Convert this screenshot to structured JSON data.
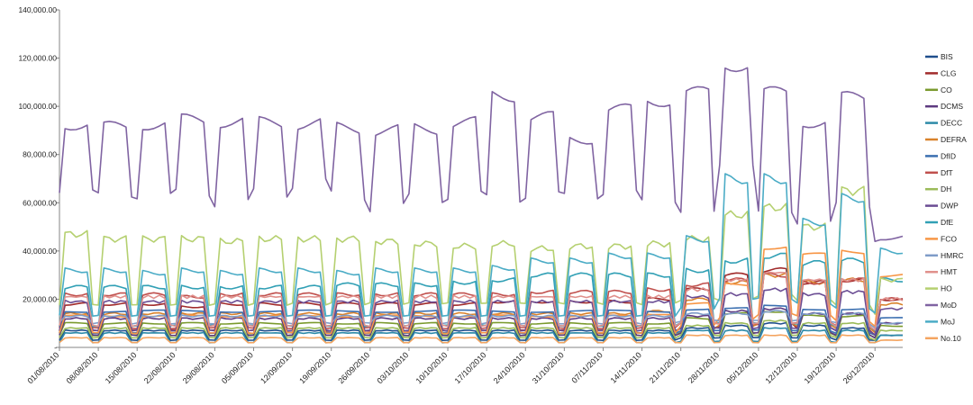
{
  "chart_data": {
    "type": "line",
    "title": "",
    "xlabel": "",
    "ylabel": "",
    "ylim": [
      0,
      140000
    ],
    "xlim": [
      "2010-08-01",
      "2010-12-31"
    ],
    "grid": false,
    "legend_position": "right",
    "y_tick_labels": [
      "-",
      "20,000.00",
      "40,000.00",
      "60,000.00",
      "80,000.00",
      "100,000.00",
      "120,000.00",
      "140,000.00"
    ],
    "x_tick_labels": [
      "01/08/2010",
      "08/08/2010",
      "15/08/2010",
      "22/08/2010",
      "29/08/2010",
      "05/09/2010",
      "12/09/2010",
      "19/09/2010",
      "26/09/2010",
      "03/10/2010",
      "10/10/2010",
      "17/10/2010",
      "24/10/2010",
      "31/10/2010",
      "07/11/2010",
      "14/11/2010",
      "21/11/2010",
      "28/11/2010",
      "05/12/2010",
      "12/12/2010",
      "19/12/2010",
      "26/12/2010"
    ],
    "x_weeks": [
      "2010-08-01",
      "2010-08-08",
      "2010-08-15",
      "2010-08-22",
      "2010-08-29",
      "2010-09-05",
      "2010-09-12",
      "2010-09-19",
      "2010-09-26",
      "2010-10-03",
      "2010-10-10",
      "2010-10-17",
      "2010-10-24",
      "2010-10-31",
      "2010-11-07",
      "2010-11-14",
      "2010-11-21",
      "2010-11-28",
      "2010-12-05",
      "2010-12-12",
      "2010-12-19",
      "2010-12-26"
    ],
    "series": [
      {
        "name": "BIS",
        "color": "#1f4e8c",
        "weekday": [
          7000,
          7000,
          7000,
          7000,
          7000,
          7000,
          7000,
          7000,
          7000,
          7000,
          7000,
          7000,
          7000,
          7000,
          7000,
          7000,
          8000,
          9000,
          10000,
          9000,
          8000,
          5000
        ],
        "weekend": [
          3000,
          3000,
          3000,
          3000,
          3000,
          3000,
          3000,
          3000,
          3000,
          3000,
          3000,
          3000,
          3000,
          3000,
          3000,
          3000,
          4000,
          4000,
          4000,
          4000,
          3000,
          3000
        ]
      },
      {
        "name": "CLG",
        "color": "#a12b2b",
        "weekday": [
          18000,
          18000,
          18000,
          17000,
          18000,
          18000,
          18000,
          18000,
          18000,
          18000,
          18000,
          19000,
          19000,
          19000,
          19000,
          20000,
          24000,
          30000,
          32000,
          27000,
          28000,
          20000
        ],
        "weekend": [
          7000,
          7000,
          7000,
          7000,
          7000,
          7000,
          7000,
          7000,
          7000,
          7000,
          7000,
          7000,
          7000,
          7000,
          7000,
          7000,
          8000,
          9000,
          10000,
          8000,
          7000,
          5000
        ]
      },
      {
        "name": "CO",
        "color": "#7a9a2e",
        "weekday": [
          10000,
          10000,
          10000,
          10000,
          10000,
          10000,
          10000,
          10000,
          10000,
          10000,
          10000,
          10000,
          10000,
          10000,
          10000,
          10000,
          12000,
          14000,
          15000,
          13000,
          13000,
          9000
        ],
        "weekend": [
          5000,
          5000,
          5000,
          5000,
          5000,
          5000,
          5000,
          5000,
          5000,
          5000,
          5000,
          5000,
          5000,
          5000,
          5000,
          5000,
          6000,
          6000,
          6000,
          6000,
          5000,
          4000
        ]
      },
      {
        "name": "DCMS",
        "color": "#5d3a80",
        "weekday": [
          12000,
          12000,
          12000,
          12000,
          12000,
          12000,
          12000,
          12000,
          12000,
          12000,
          12000,
          12000,
          12000,
          12000,
          12000,
          12000,
          13000,
          15000,
          16000,
          14000,
          14000,
          10000
        ],
        "weekend": [
          5000,
          5000,
          5000,
          5000,
          5000,
          5000,
          5000,
          5000,
          5000,
          5000,
          5000,
          5000,
          5000,
          5000,
          5000,
          5000,
          6000,
          6000,
          6000,
          6000,
          5000,
          4000
        ]
      },
      {
        "name": "DECC",
        "color": "#2d8aa8",
        "weekday": [
          6000,
          6000,
          6000,
          6000,
          6000,
          6000,
          6000,
          6000,
          6000,
          6000,
          6000,
          6000,
          6000,
          6000,
          6000,
          6000,
          7000,
          7000,
          8000,
          7000,
          7000,
          5000
        ],
        "weekend": [
          2000,
          2000,
          2000,
          2000,
          2000,
          2000,
          2000,
          2000,
          2000,
          2000,
          2000,
          2000,
          2000,
          2000,
          2000,
          2000,
          2500,
          2500,
          2500,
          2500,
          2000,
          2000
        ]
      },
      {
        "name": "DEFRA",
        "color": "#d9822b",
        "weekday": [
          14000,
          14000,
          14000,
          14000,
          14000,
          14000,
          14000,
          14000,
          14000,
          14000,
          14000,
          14000,
          14000,
          14000,
          14000,
          15000,
          20000,
          27000,
          30000,
          27000,
          28000,
          18000
        ],
        "weekend": [
          6000,
          6000,
          6000,
          6000,
          6000,
          6000,
          6000,
          6000,
          6000,
          6000,
          6000,
          6000,
          6000,
          6000,
          6000,
          6000,
          8000,
          9000,
          10000,
          9000,
          8000,
          6000
        ]
      },
      {
        "name": "DfID",
        "color": "#3a6fb0",
        "weekday": [
          15000,
          15000,
          15000,
          15000,
          15000,
          15000,
          15000,
          15000,
          15000,
          15000,
          15000,
          15000,
          15000,
          15000,
          15000,
          15000,
          16000,
          16000,
          17000,
          16000,
          16000,
          12000
        ],
        "weekend": [
          6000,
          6000,
          6000,
          6000,
          6000,
          6000,
          6000,
          6000,
          6000,
          6000,
          6000,
          6000,
          6000,
          6000,
          6000,
          6000,
          7000,
          7000,
          7000,
          7000,
          6000,
          5000
        ]
      },
      {
        "name": "DfT",
        "color": "#c0504d",
        "weekday": [
          22000,
          22000,
          22000,
          21000,
          22000,
          22000,
          22000,
          22000,
          22000,
          22000,
          22000,
          22000,
          23000,
          23000,
          23000,
          24000,
          26000,
          28000,
          30000,
          27000,
          28000,
          20000
        ],
        "weekend": [
          8000,
          8000,
          8000,
          8000,
          8000,
          8000,
          8000,
          8000,
          8000,
          8000,
          8000,
          8000,
          8000,
          8000,
          8000,
          8000,
          10000,
          10000,
          10000,
          10000,
          9000,
          7000
        ]
      },
      {
        "name": "DH",
        "color": "#9bbb59",
        "weekday": [
          8000,
          8000,
          8000,
          8000,
          8000,
          8000,
          8000,
          8000,
          8000,
          8000,
          8000,
          8000,
          8000,
          8000,
          8000,
          8000,
          9000,
          10000,
          11000,
          10000,
          10000,
          7000
        ],
        "weekend": [
          4000,
          4000,
          4000,
          4000,
          4000,
          4000,
          4000,
          4000,
          4000,
          4000,
          4000,
          4000,
          4000,
          4000,
          4000,
          4000,
          5000,
          5000,
          5000,
          5000,
          4000,
          3000
        ]
      },
      {
        "name": "DWP",
        "color": "#6a4c93",
        "weekday": [
          19000,
          19000,
          19000,
          19000,
          19000,
          19000,
          19000,
          19000,
          19000,
          19000,
          19000,
          19000,
          19000,
          19000,
          19000,
          19000,
          21000,
          22000,
          24000,
          22000,
          23000,
          16000
        ],
        "weekend": [
          7000,
          7000,
          7000,
          7000,
          7000,
          7000,
          7000,
          7000,
          7000,
          7000,
          7000,
          7000,
          7000,
          7000,
          7000,
          7000,
          8000,
          8000,
          8000,
          8000,
          7000,
          5000
        ]
      },
      {
        "name": "DfE",
        "color": "#31a0b5",
        "weekday": [
          25000,
          25000,
          25000,
          25000,
          25000,
          25000,
          25000,
          26000,
          26000,
          26000,
          27000,
          28000,
          30000,
          30000,
          30000,
          30000,
          32000,
          36000,
          38000,
          35000,
          36000,
          28000
        ],
        "weekend": [
          9000,
          9000,
          9000,
          9000,
          9000,
          9000,
          9000,
          9000,
          9000,
          9000,
          9000,
          9000,
          9000,
          9000,
          9000,
          9000,
          10000,
          10000,
          10000,
          10000,
          9000,
          7000
        ]
      },
      {
        "name": "FCO",
        "color": "#f79646",
        "weekday": [
          13000,
          13000,
          13000,
          13000,
          13000,
          13000,
          13000,
          13000,
          13000,
          13000,
          13000,
          13000,
          13000,
          13000,
          13000,
          14000,
          18000,
          26000,
          42000,
          38000,
          40000,
          30000
        ],
        "weekend": [
          6000,
          6000,
          6000,
          6000,
          6000,
          6000,
          6000,
          6000,
          6000,
          6000,
          6000,
          6000,
          6000,
          6000,
          6000,
          6000,
          9000,
          12000,
          14000,
          13000,
          11000,
          9000
        ]
      },
      {
        "name": "HMRC",
        "color": "#7f9cc8",
        "weekday": [
          13000,
          13000,
          13000,
          13000,
          13000,
          13000,
          13000,
          13000,
          13000,
          13000,
          13000,
          13000,
          13000,
          13000,
          13000,
          13000,
          14000,
          14000,
          15000,
          14000,
          14000,
          10000
        ],
        "weekend": [
          10000,
          10000,
          10000,
          10000,
          10000,
          10000,
          10000,
          10000,
          10000,
          10000,
          10000,
          10000,
          10000,
          10000,
          10000,
          10000,
          11000,
          11000,
          11000,
          11000,
          10000,
          8000
        ]
      },
      {
        "name": "HMT",
        "color": "#e0908c",
        "weekday": [
          21000,
          21000,
          21000,
          21000,
          21000,
          21000,
          21000,
          21000,
          21000,
          21000,
          21000,
          21000,
          21000,
          21000,
          21000,
          21000,
          24000,
          28000,
          31000,
          28000,
          28000,
          20000
        ],
        "weekend": [
          9000,
          9000,
          9000,
          9000,
          9000,
          9000,
          9000,
          9000,
          9000,
          9000,
          9000,
          9000,
          9000,
          9000,
          9000,
          9000,
          10000,
          10000,
          10000,
          10000,
          9000,
          7000
        ]
      },
      {
        "name": "HO",
        "color": "#b5d070",
        "weekday": [
          47000,
          45000,
          45000,
          45000,
          44000,
          45000,
          45000,
          45000,
          44000,
          43000,
          42000,
          43000,
          41000,
          42000,
          42000,
          43000,
          45000,
          55000,
          58000,
          50000,
          65000,
          28000
        ],
        "weekend": [
          18000,
          18000,
          18000,
          18000,
          18000,
          18000,
          18000,
          18000,
          18000,
          18000,
          18000,
          18000,
          18000,
          18000,
          18000,
          18000,
          20000,
          20000,
          22000,
          20000,
          18000,
          14000
        ]
      },
      {
        "name": "MoD",
        "color": "#8064a2",
        "weekday": [
          93000,
          91000,
          93000,
          94000,
          94000,
          93000,
          93000,
          91000,
          90000,
          91000,
          93000,
          105000,
          95000,
          87000,
          98000,
          103000,
          105000,
          118000,
          105000,
          94000,
          103000,
          46000
        ],
        "weekend": [
          65000,
          63000,
          63000,
          64000,
          60000,
          64000,
          68000,
          63000,
          58000,
          62000,
          63000,
          62000,
          63000,
          63000,
          64000,
          61000,
          56000,
          76000,
          56000,
          52000,
          59000,
          45000
        ]
      },
      {
        "name": "MoJ",
        "color": "#4bacc6",
        "weekday": [
          32000,
          32000,
          31000,
          32000,
          31000,
          32000,
          32000,
          31000,
          32000,
          32000,
          32000,
          33000,
          36000,
          36000,
          38000,
          38000,
          45000,
          70000,
          70000,
          52000,
          62000,
          40000
        ],
        "weekend": [
          13000,
          13000,
          13000,
          13000,
          13000,
          13000,
          13000,
          13000,
          13000,
          13000,
          13000,
          13000,
          13000,
          13000,
          13000,
          13000,
          16000,
          20000,
          20000,
          18000,
          16000,
          14000
        ]
      },
      {
        "name": "No.10",
        "color": "#f4a460",
        "weekday": [
          4000,
          4000,
          4000,
          4000,
          4000,
          4000,
          4000,
          4000,
          4000,
          4000,
          4000,
          4000,
          4000,
          4000,
          4000,
          4000,
          5000,
          5000,
          5000,
          5000,
          5000,
          3000
        ],
        "weekend": [
          2000,
          2000,
          2000,
          2000,
          2000,
          2000,
          2000,
          2000,
          2000,
          2000,
          2000,
          2000,
          2000,
          2000,
          2000,
          2000,
          2000,
          2000,
          2000,
          2000,
          2000,
          2000
        ]
      }
    ]
  }
}
